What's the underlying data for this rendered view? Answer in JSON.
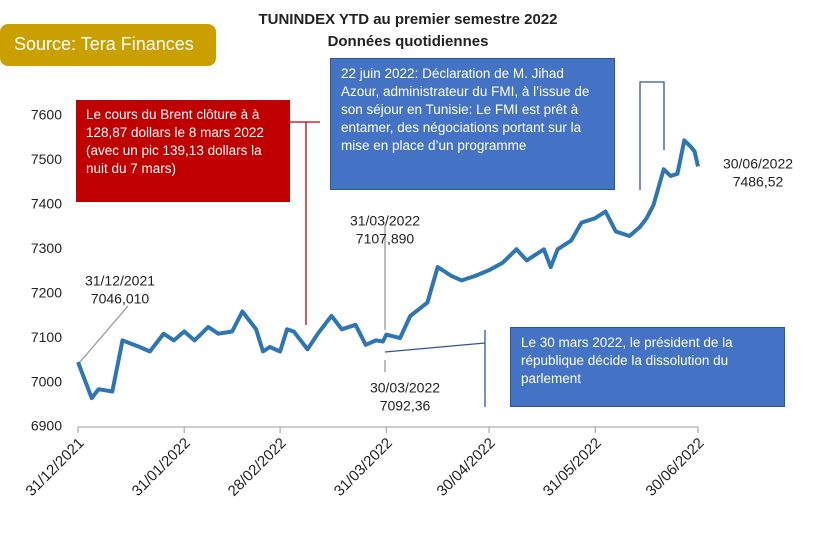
{
  "source": "Source: Tera Finances",
  "chart_data": {
    "type": "line",
    "title": "TUNINDEX YTD au premier semestre 2022",
    "subtitle": "Données quotidiennes",
    "color": "#2E75B6",
    "x": [
      "31/12/2021",
      "04/01/2022",
      "06/01/2022",
      "10/01/2022",
      "13/01/2022",
      "18/01/2022",
      "21/01/2022",
      "25/01/2022",
      "28/01/2022",
      "31/01/2022",
      "03/02/2022",
      "07/02/2022",
      "10/02/2022",
      "14/02/2022",
      "17/02/2022",
      "21/02/2022",
      "23/02/2022",
      "25/02/2022",
      "28/02/2022",
      "02/03/2022",
      "04/03/2022",
      "08/03/2022",
      "11/03/2022",
      "15/03/2022",
      "18/03/2022",
      "22/03/2022",
      "25/03/2022",
      "28/03/2022",
      "30/03/2022",
      "31/03/2022",
      "04/04/2022",
      "07/04/2022",
      "12/04/2022",
      "15/04/2022",
      "19/04/2022",
      "22/04/2022",
      "26/04/2022",
      "30/04/2022",
      "04/05/2022",
      "08/05/2022",
      "11/05/2022",
      "16/05/2022",
      "18/05/2022",
      "20/05/2022",
      "24/05/2022",
      "27/05/2022",
      "31/05/2022",
      "03/06/2022",
      "06/06/2022",
      "10/06/2022",
      "13/06/2022",
      "15/06/2022",
      "17/06/2022",
      "20/06/2022",
      "22/06/2022",
      "24/06/2022",
      "26/06/2022",
      "28/06/2022",
      "29/06/2022",
      "30/06/2022"
    ],
    "values": [
      7046.01,
      6965,
      6985,
      6980,
      7095,
      7080,
      7070,
      7110,
      7095,
      7115,
      7095,
      7125,
      7110,
      7115,
      7160,
      7120,
      7070,
      7080,
      7070,
      7120,
      7115,
      7075,
      7110,
      7150,
      7120,
      7130,
      7085,
      7095,
      7092.36,
      7107.89,
      7100,
      7150,
      7180,
      7260,
      7240,
      7230,
      7240,
      7253,
      7270,
      7300,
      7275,
      7300,
      7260,
      7300,
      7320,
      7360,
      7370,
      7385,
      7340,
      7330,
      7350,
      7370,
      7400,
      7480,
      7465,
      7470,
      7545,
      7530,
      7520,
      7486.52
    ],
    "xlim": [
      "31/12/2021",
      "30/06/2022"
    ],
    "xticks": [
      "31/12/2021",
      "31/01/2022",
      "28/02/2022",
      "31/03/2022",
      "30/04/2022",
      "31/05/2022",
      "30/06/2022"
    ],
    "ylim": [
      6900,
      7600
    ],
    "yticks": [
      6900,
      7000,
      7100,
      7200,
      7300,
      7400,
      7500,
      7600
    ],
    "point_labels": [
      {
        "lines": [
          "31/12/2021",
          "7046,010"
        ]
      },
      {
        "lines": [
          "31/03/2022",
          "7107,890"
        ]
      },
      {
        "lines": [
          "30/03/2022",
          "7092,36"
        ]
      },
      {
        "lines": [
          "30/06/2022",
          "7486,52"
        ]
      }
    ],
    "annotations": [
      "Le cours du Brent clôture à à 128,87 dollars le 8 mars 2022 (avec un pic 139,13 dollars la nuit du 7 mars)",
      "22 juin 2022: Déclaration de M. Jihad Azour, administrateur du FMI, à l’issue de son séjour en Tunisie: Le FMI est prêt à entamer, des négociations portant sur la mise en place d’un programme",
      "Le 30 mars 2022, le président de la république décide la dissolution du parlement"
    ]
  }
}
